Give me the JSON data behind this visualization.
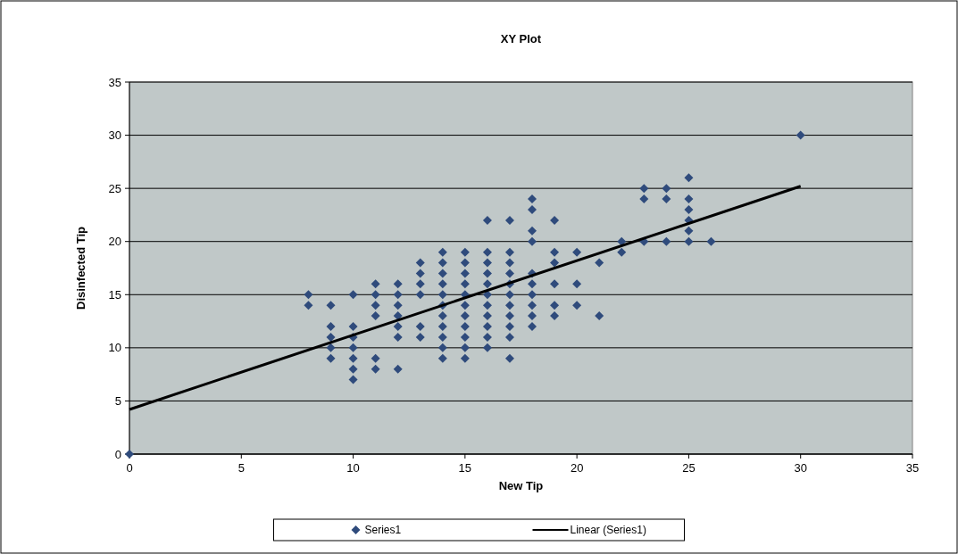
{
  "chart_data": {
    "type": "scatter",
    "title": "XY Plot",
    "xlabel": "New Tip",
    "ylabel": "Disinfected Tip",
    "xlim": [
      0,
      35
    ],
    "ylim": [
      0,
      35
    ],
    "xticks": [
      0,
      5,
      10,
      15,
      20,
      25,
      30,
      35
    ],
    "yticks": [
      0,
      5,
      10,
      15,
      20,
      25,
      30,
      35
    ],
    "grid": "y",
    "legend": "bottom",
    "marker": "diamond",
    "series": [
      {
        "name": "Series1",
        "color": "#2f4b7c",
        "x": [
          0,
          8,
          8,
          9,
          9,
          9,
          9,
          9,
          10,
          10,
          10,
          10,
          10,
          10,
          10,
          11,
          11,
          11,
          11,
          11,
          11,
          12,
          12,
          12,
          12,
          12,
          12,
          12,
          13,
          13,
          13,
          13,
          13,
          13,
          14,
          14,
          14,
          14,
          14,
          14,
          14,
          14,
          14,
          14,
          14,
          15,
          15,
          15,
          15,
          15,
          15,
          15,
          15,
          15,
          15,
          15,
          16,
          16,
          16,
          16,
          16,
          16,
          16,
          16,
          16,
          16,
          16,
          17,
          17,
          17,
          17,
          17,
          17,
          17,
          17,
          17,
          17,
          17,
          18,
          18,
          18,
          18,
          18,
          18,
          18,
          18,
          18,
          18,
          19,
          19,
          19,
          19,
          19,
          19,
          20,
          20,
          20,
          21,
          21,
          22,
          22,
          23,
          23,
          23,
          24,
          24,
          24,
          25,
          25,
          25,
          25,
          25,
          25,
          26,
          30
        ],
        "values": [
          0,
          15,
          14,
          14,
          12,
          11,
          10,
          9,
          15,
          12,
          11,
          10,
          9,
          8,
          7,
          16,
          15,
          14,
          13,
          9,
          8,
          16,
          15,
          14,
          13,
          12,
          11,
          8,
          18,
          17,
          16,
          15,
          12,
          11,
          19,
          18,
          17,
          16,
          15,
          14,
          13,
          12,
          11,
          10,
          9,
          19,
          18,
          17,
          16,
          15,
          14,
          13,
          12,
          11,
          10,
          9,
          22,
          19,
          18,
          17,
          16,
          15,
          14,
          13,
          12,
          11,
          10,
          22,
          19,
          18,
          17,
          16,
          15,
          14,
          13,
          12,
          11,
          9,
          24,
          23,
          21,
          20,
          17,
          16,
          15,
          14,
          13,
          12,
          22,
          19,
          18,
          16,
          14,
          13,
          19,
          16,
          14,
          18,
          13,
          20,
          19,
          25,
          24,
          20,
          25,
          24,
          20,
          26,
          24,
          23,
          22,
          21,
          20,
          20,
          30
        ]
      },
      {
        "name": "Linear (Series1)",
        "type": "line",
        "color": "#000000",
        "line_style": "solid",
        "marker": "none",
        "x": [
          0,
          30
        ],
        "values": [
          4.2,
          25.2
        ]
      }
    ]
  }
}
